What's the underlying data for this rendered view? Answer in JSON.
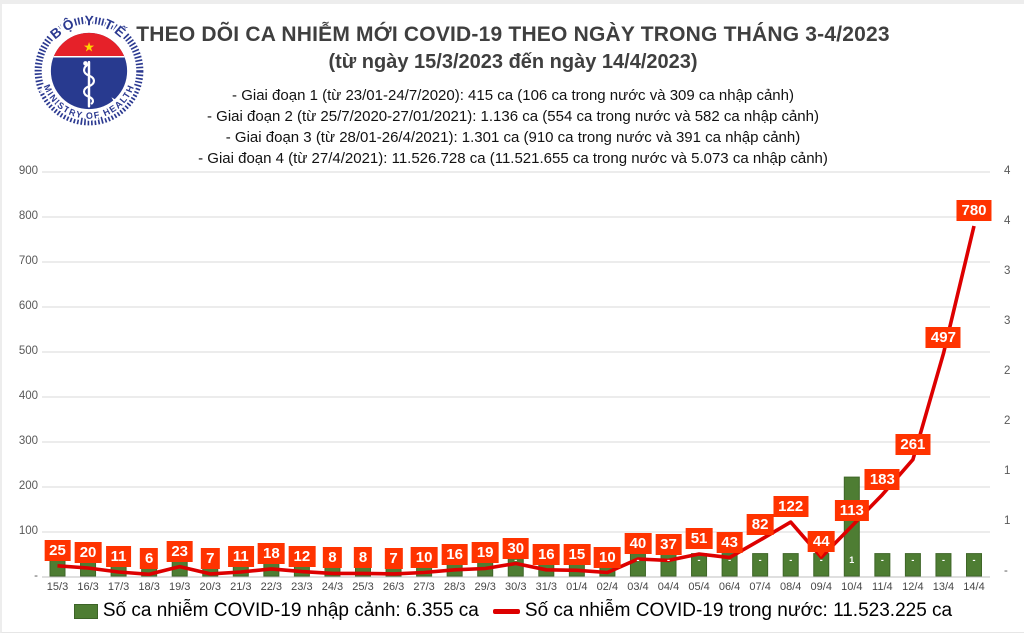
{
  "header": {
    "logo": {
      "top_text": "BỘ Y TẾ",
      "bottom_text": "MINISTRY OF HEALTH"
    },
    "title": "THEO DÕI CA NHIỄM MỚI COVID-19 THEO NGÀY TRONG THÁNG 3-4/2023",
    "subtitle": "(từ ngày 15/3/2023 đến ngày 14/4/2023)",
    "periods": [
      "- Giai đoạn 1 (từ 23/01-24/7/2020): 415 ca (106 ca trong nước và 309 ca nhập cảnh)",
      "- Giai đoạn 2 (từ 25/7/2020-27/01/2021): 1.136 ca (554 ca trong nước và 582 ca nhập cảnh)",
      "- Giai đoạn 3 (từ 28/01-26/4/2021): 1.301 ca (910 ca trong nước và 391 ca nhập cảnh)",
      "- Giai đoạn 4 (từ 27/4/2021): 11.526.728 ca (11.521.655 ca trong nước và 5.073 ca nhập cảnh)"
    ]
  },
  "chart_data": {
    "type": "line+bar",
    "categories": [
      "15/3",
      "16/3",
      "17/3",
      "18/3",
      "19/3",
      "20/3",
      "21/3",
      "22/3",
      "23/3",
      "24/3",
      "25/3",
      "26/3",
      "27/3",
      "28/3",
      "29/3",
      "30/3",
      "31/3",
      "01/4",
      "02/4",
      "03/4",
      "04/4",
      "05/4",
      "06/4",
      "07/4",
      "08/4",
      "09/4",
      "10/4",
      "11/4",
      "12/4",
      "13/4",
      "14/4"
    ],
    "series": [
      {
        "name": "Số ca nhiễm COVID-19 trong nước",
        "type": "line",
        "color": "#dd0000",
        "values": [
          25,
          20,
          11,
          6,
          23,
          7,
          11,
          18,
          12,
          8,
          8,
          7,
          10,
          16,
          19,
          30,
          16,
          15,
          10,
          40,
          37,
          51,
          43,
          82,
          122,
          44,
          113,
          183,
          261,
          497,
          780
        ]
      },
      {
        "name": "Số ca nhiễm COVID-19 nhập cảnh",
        "type": "bar",
        "color": "#4e7d33",
        "display_values_left_axis_est": [
          52,
          52,
          52,
          52,
          52,
          52,
          52,
          52,
          52,
          52,
          52,
          52,
          52,
          52,
          52,
          52,
          52,
          52,
          52,
          52,
          52,
          52,
          52,
          52,
          52,
          52,
          222,
          52,
          52,
          52,
          52
        ],
        "labels": [
          "-",
          "-",
          "-",
          "-",
          "-",
          "-",
          "-",
          "-",
          "-",
          "-",
          "-",
          "-",
          "-",
          "-",
          "-",
          "-",
          "-",
          "-",
          "-",
          "-",
          "-",
          "-",
          "-",
          "-",
          "-",
          "-",
          "1",
          "-",
          "-",
          "-",
          "-"
        ]
      }
    ],
    "left_axis": {
      "ticks": [
        "900",
        "800",
        "700",
        "600",
        "500",
        "400",
        "300",
        "200",
        "100",
        "-"
      ],
      "min": 0,
      "max": 900
    },
    "right_axis": {
      "ticks_visible": [
        "4",
        "4",
        "3",
        "3",
        "2",
        "2",
        "1",
        "1",
        "-"
      ]
    },
    "grid": true,
    "legend_position": "bottom",
    "callout_pointer_indices": [
      25
    ]
  },
  "legend": {
    "bar_label": "Số ca nhiễm COVID-19 nhập cảnh: 6.355 ca",
    "line_label": "Số ca nhiễm COVID-19 trong nước: 11.523.225 ca"
  },
  "colors": {
    "line_red": "#dd0000",
    "value_box_red": "#ff3300",
    "bar_green": "#4e7d33",
    "gridline": "#d9d9d9",
    "axis_line": "#bfbfbf",
    "axis_text": "#595959",
    "title_text": "#3f3f3f",
    "logo_navy": "#2b3990",
    "logo_red": "#e62129",
    "logo_star_yellow": "#ffd500"
  }
}
